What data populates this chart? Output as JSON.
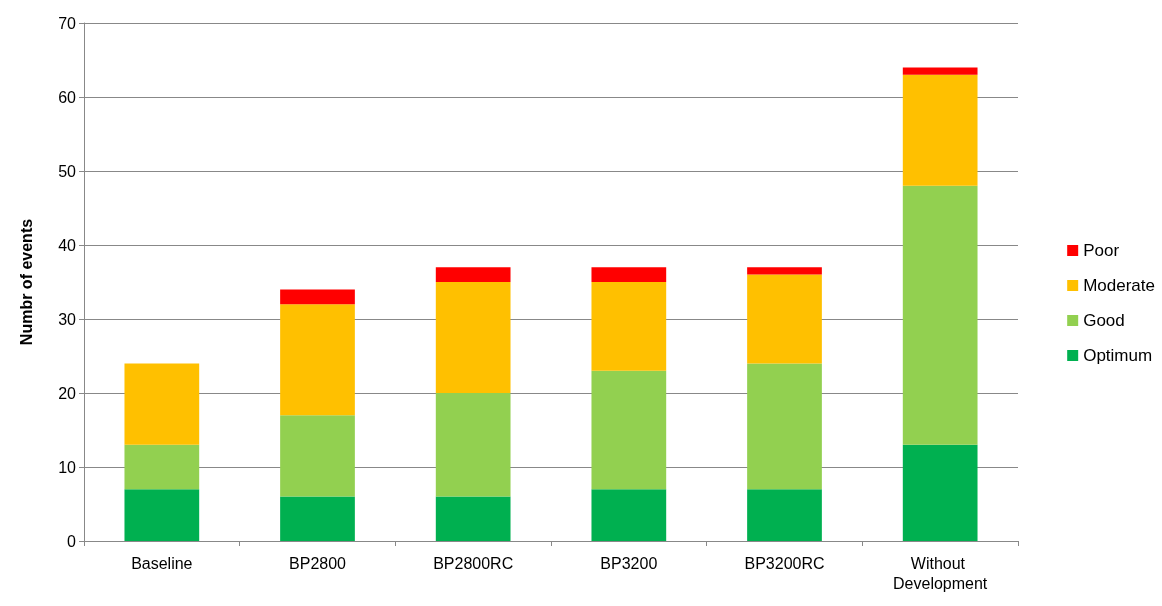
{
  "chart_data": {
    "type": "bar",
    "ylabel": "Numbr of events",
    "categories": [
      "Baseline",
      "BP2800",
      "BP2800RC",
      "BP3200",
      "BP3200RC",
      "Without Development"
    ],
    "series": [
      {
        "name": "Optimum",
        "color": "#00b050",
        "values": [
          7,
          6,
          6,
          7,
          7,
          13
        ]
      },
      {
        "name": "Good",
        "color": "#92d050",
        "values": [
          6,
          11,
          14,
          16,
          17,
          35
        ]
      },
      {
        "name": "Moderate",
        "color": "#ffc000",
        "values": [
          11,
          15,
          15,
          12,
          12,
          15
        ]
      },
      {
        "name": "Poor",
        "color": "#ff0000",
        "values": [
          0,
          2,
          2,
          2,
          1,
          1
        ]
      }
    ],
    "stacked": true,
    "ylim": [
      0,
      70
    ],
    "yticks": [
      0,
      10,
      20,
      30,
      40,
      50,
      60,
      70
    ],
    "grid": "y",
    "legend": "right"
  }
}
